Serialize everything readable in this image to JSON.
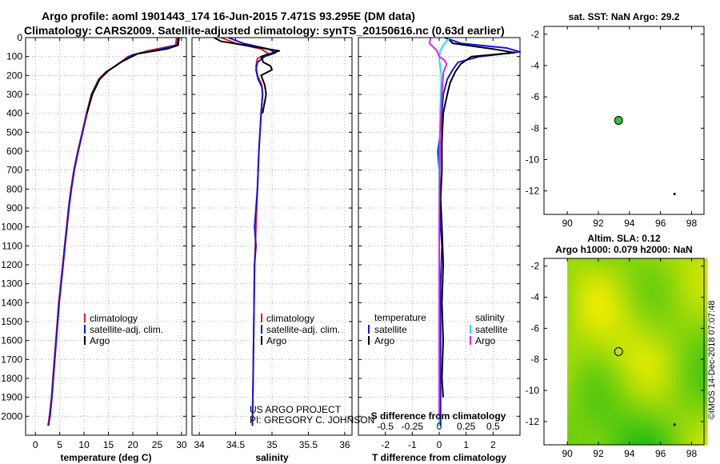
{
  "header": {
    "line1": "Argo profile: aoml 1901443_174 16-Jun-2015 7.471S 93.295E (DM data)",
    "line2": "Climatology: CARS2009. Satellite-adjusted climatology: synTS_20150616.nc (0.63d earlier)"
  },
  "colors": {
    "climatology": "#e02020",
    "satellite": "#1414e6",
    "argo": "#000000",
    "sal_satellite": "#20e0f0",
    "sal_argo": "#e020e0"
  },
  "chart_data": [
    {
      "id": "temperature",
      "type": "line",
      "xlabel": "temperature (deg C)",
      "ylabel": "",
      "xlim": [
        -2,
        31
      ],
      "ylim": [
        2100,
        0
      ],
      "grid": true,
      "xticks": [
        "0",
        "5",
        "10",
        "15",
        "20",
        "25",
        "30"
      ],
      "yticks": [
        "0",
        "100",
        "200",
        "300",
        "400",
        "500",
        "600",
        "700",
        "800",
        "900",
        "1000",
        "1100",
        "1200",
        "1300",
        "1400",
        "1500",
        "1600",
        "1700",
        "1800",
        "1900",
        "2000"
      ],
      "legend": [
        "climatology",
        "satellite-adj. clim.",
        "Argo"
      ],
      "series": [
        {
          "name": "climatology",
          "color": "#e02020",
          "points": [
            [
              29.0,
              0
            ],
            [
              28.8,
              40
            ],
            [
              23,
              70
            ],
            [
              19,
              100
            ],
            [
              16.5,
              150
            ],
            [
              14.5,
              180
            ],
            [
              13,
              220
            ],
            [
              11.5,
              300
            ],
            [
              10.5,
              400
            ],
            [
              9.6,
              500
            ],
            [
              8.7,
              600
            ],
            [
              7.9,
              700
            ],
            [
              7.3,
              800
            ],
            [
              6.8,
              900
            ],
            [
              6.4,
              1000
            ],
            [
              6.0,
              1100
            ],
            [
              5.6,
              1200
            ],
            [
              5.2,
              1300
            ],
            [
              4.8,
              1400
            ],
            [
              4.5,
              1500
            ],
            [
              4.2,
              1600
            ],
            [
              3.9,
              1700
            ],
            [
              3.6,
              1800
            ],
            [
              3.3,
              1900
            ],
            [
              2.9,
              2000
            ],
            [
              2.6,
              2050
            ]
          ]
        },
        {
          "name": "satellite-adj. clim.",
          "color": "#1414e6",
          "points": [
            [
              29.3,
              0
            ],
            [
              29.1,
              40
            ],
            [
              25,
              65
            ],
            [
              20,
              90
            ],
            [
              17,
              140
            ],
            [
              14.7,
              180
            ],
            [
              13.1,
              220
            ],
            [
              11.6,
              300
            ],
            [
              10.6,
              400
            ],
            [
              9.7,
              500
            ],
            [
              8.8,
              600
            ],
            [
              8.0,
              700
            ],
            [
              7.4,
              800
            ],
            [
              6.9,
              900
            ],
            [
              6.5,
              1000
            ],
            [
              6.1,
              1100
            ],
            [
              5.7,
              1200
            ],
            [
              5.3,
              1300
            ],
            [
              4.9,
              1400
            ],
            [
              4.6,
              1500
            ],
            [
              4.3,
              1600
            ],
            [
              4.0,
              1700
            ],
            [
              3.7,
              1800
            ],
            [
              3.4,
              1900
            ],
            [
              3.0,
              2000
            ],
            [
              2.7,
              2050
            ]
          ]
        },
        {
          "name": "Argo",
          "color": "#000000",
          "points": [
            [
              29.5,
              0
            ],
            [
              29.3,
              40
            ],
            [
              27,
              60
            ],
            [
              21,
              85
            ],
            [
              17.5,
              130
            ],
            [
              15,
              175
            ],
            [
              13.2,
              220
            ],
            [
              11.7,
              300
            ],
            [
              10.6,
              400
            ]
          ]
        }
      ]
    },
    {
      "id": "salinity",
      "type": "line",
      "xlabel": "salinity",
      "ylabel": "",
      "xlim": [
        33.9,
        36.1
      ],
      "ylim": [
        2100,
        0
      ],
      "grid": true,
      "xticks": [
        "34",
        "34.5",
        "35",
        "35.5",
        "36"
      ],
      "legend": [
        "climatology",
        "satellite-adj. clim.",
        "Argo"
      ],
      "annotation": [
        "US ARGO PROJECT",
        "PI: GREGORY C. JOHNSON"
      ],
      "series": [
        {
          "name": "climatology",
          "color": "#e02020",
          "points": [
            [
              34.3,
              0
            ],
            [
              34.5,
              30
            ],
            [
              34.85,
              60
            ],
            [
              34.95,
              85
            ],
            [
              34.8,
              110
            ],
            [
              34.78,
              150
            ],
            [
              34.8,
              200
            ],
            [
              34.86,
              250
            ],
            [
              34.87,
              300
            ],
            [
              34.85,
              400
            ],
            [
              34.82,
              600
            ],
            [
              34.8,
              800
            ],
            [
              34.78,
              1000
            ],
            [
              34.76,
              1200
            ],
            [
              34.75,
              1500
            ],
            [
              34.74,
              1800
            ],
            [
              34.73,
              2050
            ]
          ]
        },
        {
          "name": "satellite-adj. clim.",
          "color": "#1414e6",
          "points": [
            [
              34.4,
              0
            ],
            [
              34.6,
              30
            ],
            [
              34.95,
              60
            ],
            [
              35.05,
              80
            ],
            [
              34.9,
              100
            ],
            [
              34.8,
              130
            ],
            [
              34.78,
              170
            ],
            [
              34.81,
              220
            ],
            [
              34.86,
              260
            ],
            [
              34.87,
              300
            ],
            [
              34.85,
              400
            ],
            [
              34.82,
              600
            ],
            [
              34.8,
              800
            ],
            [
              34.76,
              1000
            ],
            [
              34.78,
              1100
            ],
            [
              34.76,
              1200
            ],
            [
              34.75,
              1500
            ],
            [
              34.74,
              1800
            ],
            [
              34.73,
              2050
            ]
          ]
        },
        {
          "name": "Argo",
          "color": "#000000",
          "points": [
            [
              34.2,
              0
            ],
            [
              34.3,
              20
            ],
            [
              34.7,
              45
            ],
            [
              35.1,
              70
            ],
            [
              34.85,
              100
            ],
            [
              34.88,
              130
            ],
            [
              34.98,
              150
            ],
            [
              35.0,
              170
            ],
            [
              34.85,
              200
            ],
            [
              34.9,
              250
            ],
            [
              34.92,
              300
            ],
            [
              34.87,
              400
            ]
          ]
        }
      ]
    },
    {
      "id": "difference",
      "type": "line",
      "xlabel": "T difference from climatology",
      "xlabel2": "S difference from climatology",
      "xlim": [
        -3,
        3
      ],
      "x2lim": [
        -0.75,
        0.75
      ],
      "ylim": [
        2100,
        0
      ],
      "grid": true,
      "xticks": [
        "-2",
        "-1",
        "0",
        "1",
        "2"
      ],
      "x2ticks": [
        "-0.5",
        "-0.25",
        "0",
        "0.25",
        "0.5"
      ],
      "legend_left": {
        "title": "temperature",
        "items": [
          "satellite",
          "Argo"
        ]
      },
      "legend_right": {
        "title": "salinity",
        "items": [
          "satellite",
          "Argo"
        ]
      },
      "series": [
        {
          "name": "T satellite",
          "color": "#1414e6",
          "points": [
            [
              0.2,
              0
            ],
            [
              0.8,
              30
            ],
            [
              2.5,
              55
            ],
            [
              3.0,
              75
            ],
            [
              1.5,
              100
            ],
            [
              0.7,
              130
            ],
            [
              0.5,
              170
            ],
            [
              0.3,
              220
            ],
            [
              0.15,
              300
            ],
            [
              0.1,
              400
            ],
            [
              0.05,
              500
            ],
            [
              -0.05,
              600
            ],
            [
              0.05,
              800
            ],
            [
              0.05,
              1000
            ],
            [
              0.1,
              1100
            ],
            [
              0.05,
              1300
            ],
            [
              0.05,
              1500
            ],
            [
              0.05,
              2050
            ]
          ]
        },
        {
          "name": "T Argo",
          "color": "#000000",
          "points": [
            [
              0.3,
              0
            ],
            [
              0.5,
              30
            ],
            [
              2.0,
              60
            ],
            [
              2.8,
              80
            ],
            [
              1.2,
              100
            ],
            [
              0.8,
              140
            ],
            [
              0.6,
              180
            ],
            [
              0.4,
              240
            ],
            [
              0.3,
              300
            ],
            [
              0.15,
              400
            ],
            [
              0.1,
              550
            ],
            [
              0.1,
              700
            ],
            [
              0.05,
              850
            ],
            [
              0.1,
              1000
            ],
            [
              0.15,
              1200
            ],
            [
              0.1,
              1400
            ],
            [
              0.15,
              1600
            ],
            [
              0.1,
              1800
            ],
            [
              0.15,
              1900
            ]
          ]
        },
        {
          "name": "S satellite",
          "color": "#20e0f0",
          "points": [
            [
              0.1,
              0
            ],
            [
              0.05,
              30
            ],
            [
              0.01,
              70
            ],
            [
              0.0,
              110
            ],
            [
              0.02,
              200
            ],
            [
              0.01,
              400
            ],
            [
              0.0,
              700
            ],
            [
              0.0,
              1000
            ],
            [
              0.0,
              1500
            ],
            [
              0.0,
              2050
            ]
          ]
        },
        {
          "name": "S Argo",
          "color": "#e020e0",
          "points": [
            [
              -0.08,
              0
            ],
            [
              -0.09,
              30
            ],
            [
              -0.02,
              70
            ],
            [
              0.0,
              100
            ],
            [
              0.05,
              120
            ],
            [
              0.07,
              140
            ],
            [
              0.04,
              180
            ],
            [
              0.03,
              250
            ],
            [
              0.02,
              350
            ],
            [
              0.01,
              500
            ],
            [
              0.0,
              1000
            ],
            [
              0.0,
              2000
            ]
          ]
        }
      ]
    },
    {
      "id": "sst_map",
      "type": "scatter",
      "title": "sat. SST: NaN Argo: 29.2",
      "xlim": [
        88.5,
        98.8
      ],
      "ylim": [
        -13.5,
        -1.5
      ],
      "xticks": [
        "90",
        "92",
        "94",
        "96",
        "98"
      ],
      "yticks": [
        "-2",
        "-4",
        "-6",
        "-8",
        "-10",
        "-12"
      ],
      "points": [
        {
          "label": "profile",
          "x": 93.3,
          "y": -7.5
        },
        {
          "label": "track",
          "x": 96.9,
          "y": -12.2
        }
      ]
    },
    {
      "id": "sla_map",
      "type": "heatmap",
      "title": "Altim. SLA: 0.12",
      "subtitle": "Argo h1000: 0.079 h2000: NaN",
      "xlim": [
        88.5,
        98.8
      ],
      "ylim": [
        -13.5,
        -1.5
      ],
      "xticks": [
        "90",
        "92",
        "94",
        "96",
        "98"
      ],
      "yticks": [
        "-2",
        "-4",
        "-6",
        "-8",
        "-10",
        "-12"
      ],
      "points": [
        {
          "label": "profile",
          "x": 93.3,
          "y": -7.5
        },
        {
          "label": "track",
          "x": 96.9,
          "y": -12.2
        }
      ]
    }
  ],
  "credit": "©IMOS 14-Dec-2018 07:07:48"
}
